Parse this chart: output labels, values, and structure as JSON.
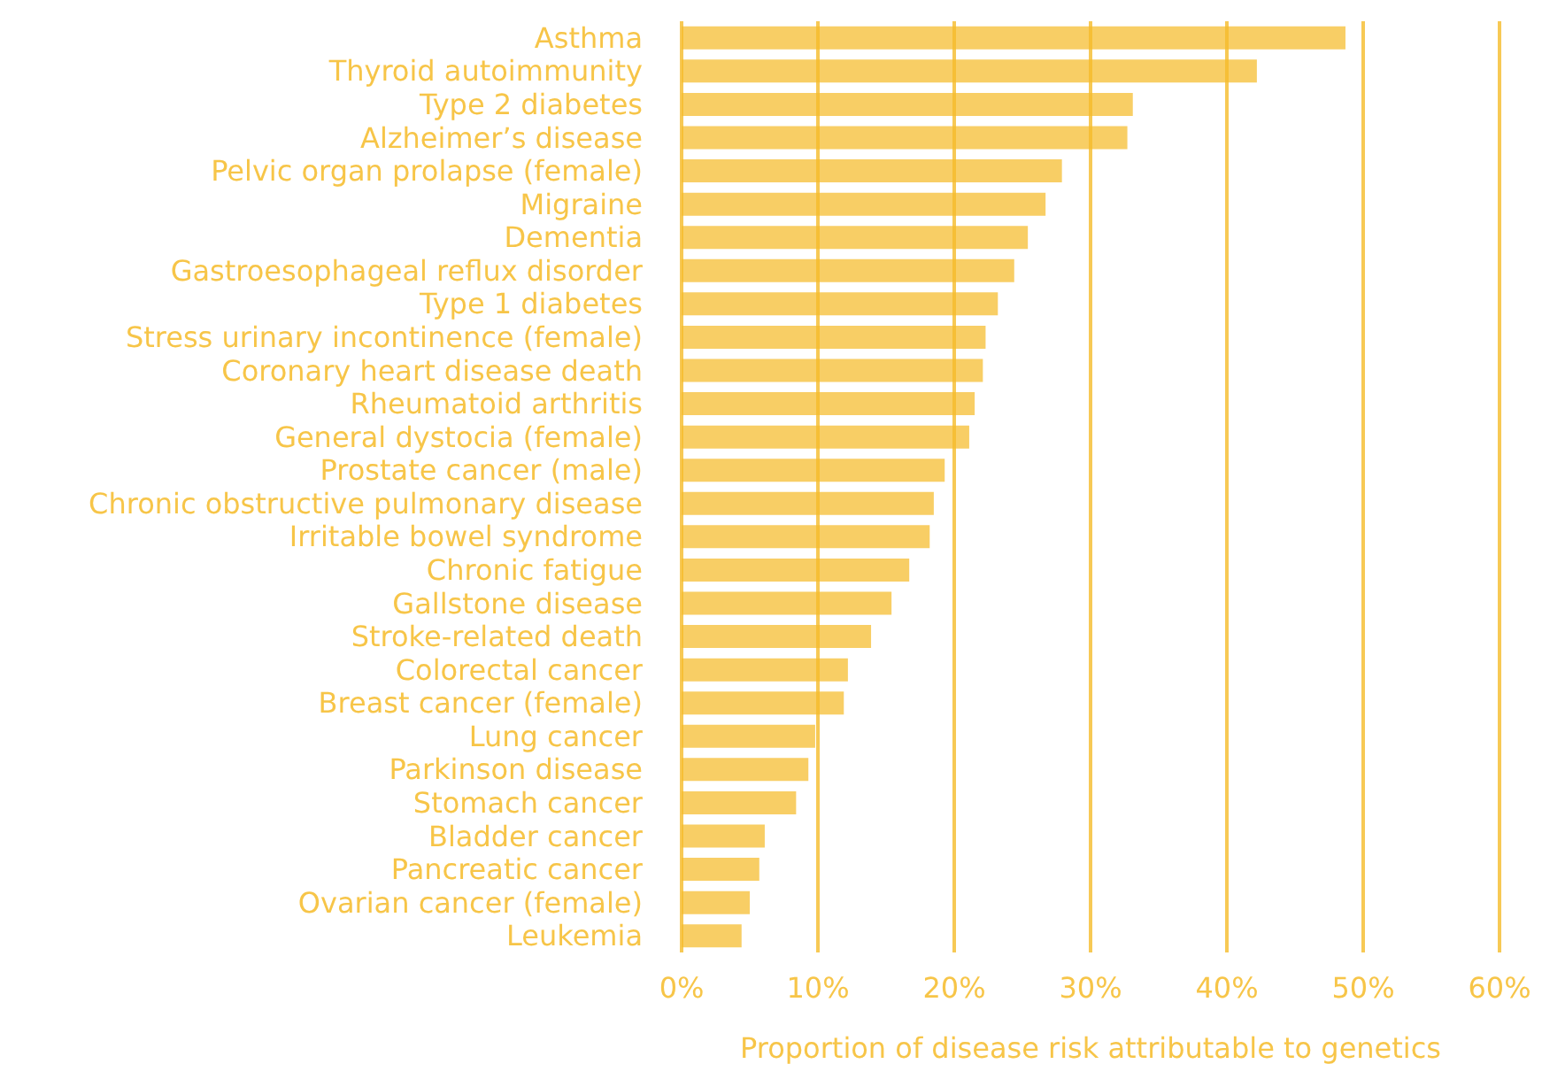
{
  "chart_data": {
    "type": "bar",
    "orientation": "horizontal",
    "xlabel": "Proportion of disease risk attributable to genetics",
    "categories": [
      "Asthma",
      "Thyroid autoimmunity",
      "Type 2 diabetes",
      "Alzheimer’s disease",
      "Pelvic organ prolapse (female)",
      "Migraine",
      "Dementia",
      "Gastroesophageal reflux disorder",
      "Type 1 diabetes",
      "Stress urinary incontinence (female)",
      "Coronary heart disease death",
      "Rheumatoid arthritis",
      "General dystocia (female)",
      "Prostate cancer (male)",
      "Chronic obstructive pulmonary disease",
      "Irritable bowel syndrome",
      "Chronic fatigue",
      "Gallstone disease",
      "Stroke-related death",
      "Colorectal cancer",
      "Breast cancer (female)",
      "Lung cancer",
      "Parkinson disease",
      "Stomach cancer",
      "Bladder cancer",
      "Pancreatic cancer",
      "Ovarian cancer (female)",
      "Leukemia"
    ],
    "values": [
      48.7,
      42.2,
      33.1,
      32.7,
      27.9,
      26.7,
      25.4,
      24.4,
      23.2,
      22.3,
      22.1,
      21.5,
      21.1,
      19.3,
      18.5,
      18.2,
      16.7,
      15.4,
      13.9,
      12.2,
      11.9,
      9.8,
      9.3,
      8.4,
      6.1,
      5.7,
      5.0,
      4.4
    ],
    "color": "#f8ce65",
    "xlim": [
      0,
      60
    ],
    "xticks": [
      {
        "value": 0,
        "label": "0%"
      },
      {
        "value": 10,
        "label": "10%"
      },
      {
        "value": 20,
        "label": "20%"
      },
      {
        "value": 30,
        "label": "30%"
      },
      {
        "value": 40,
        "label": "40%"
      },
      {
        "value": 50,
        "label": "50%"
      },
      {
        "value": 60,
        "label": "60%"
      }
    ],
    "grid": "x"
  }
}
